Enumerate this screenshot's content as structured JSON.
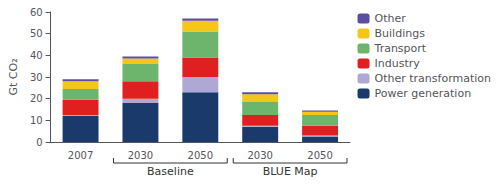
{
  "chart_data": {
    "type": "bar",
    "stacked": true,
    "ylabel": "Gt CO₂",
    "categories": [
      "2007",
      "2030",
      "2050",
      "2030",
      "2050"
    ],
    "category_groups": [
      null,
      "Baseline",
      "Baseline",
      "BLUE Map",
      "BLUE Map"
    ],
    "series": [
      {
        "name": "Power generation",
        "color": "#1a3a6b",
        "values": [
          12,
          18,
          23,
          7,
          2.5
        ]
      },
      {
        "name": "Other transformation",
        "color": "#b0a8d4",
        "values": [
          0.5,
          2,
          7,
          0.5,
          0.5
        ]
      },
      {
        "name": "Industry",
        "color": "#e02020",
        "values": [
          7,
          8,
          9,
          5,
          4.5
        ]
      },
      {
        "name": "Transport",
        "color": "#6db56d",
        "values": [
          5,
          8,
          12,
          6,
          5
        ]
      },
      {
        "name": "Buildings",
        "color": "#f5c518",
        "values": [
          3.5,
          2.5,
          5,
          3.5,
          1.5
        ]
      },
      {
        "name": "Other",
        "color": "#5b4ea0",
        "values": [
          1,
          1,
          1,
          1,
          0.5
        ]
      }
    ],
    "ylim": [
      0,
      60
    ],
    "yticks": [
      0,
      10,
      20,
      30,
      40,
      50,
      60
    ],
    "grid": false,
    "legend": "upper right"
  }
}
